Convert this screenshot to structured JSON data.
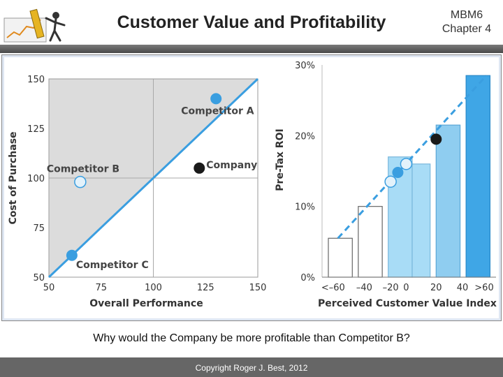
{
  "header": {
    "title": "Customer Value and Profitability",
    "course_code": "MBM6",
    "chapter": "Chapter 4"
  },
  "question": {
    "prefix": "Why would the Company be ",
    "emphasis": "more profitable",
    "suffix": " than Competitor B?"
  },
  "footer": {
    "copyright": "Copyright Roger J. Best, 2012"
  },
  "colors": {
    "accent_blue": "#3a9ee0",
    "light_blue": "#8fcdf0",
    "dark_marker": "#1a1a1a"
  },
  "chart_data": [
    {
      "type": "scatter",
      "title": "",
      "xlabel": "Overall Performance",
      "ylabel": "Cost of Purchase",
      "xlim": [
        50,
        150
      ],
      "ylim": [
        50,
        150
      ],
      "xticks": [
        "50",
        "75",
        "100",
        "125",
        "150"
      ],
      "yticks": [
        "50",
        "75",
        "100",
        "125",
        "150"
      ],
      "fair_value_line": [
        [
          50,
          50
        ],
        [
          150,
          150
        ]
      ],
      "points": [
        {
          "label": "Competitor A",
          "x": 130,
          "y": 140,
          "style": "blue"
        },
        {
          "label": "Company",
          "x": 122,
          "y": 105,
          "style": "dark"
        },
        {
          "label": "Competitor B",
          "x": 65,
          "y": 98,
          "style": "light"
        },
        {
          "label": "Competitor C",
          "x": 61,
          "y": 61,
          "style": "blue"
        }
      ]
    },
    {
      "type": "bar",
      "title": "",
      "xlabel": "Perceived Customer Value Index",
      "ylabel": "Pre-Tax ROI",
      "ylim": [
        0,
        30
      ],
      "yticks": [
        "0%",
        "10%",
        "20%",
        "30%"
      ],
      "categories": [
        "<–60",
        "–40",
        "–20",
        "0",
        "20",
        "40",
        ">60"
      ],
      "bars": [
        {
          "from": -70,
          "to": -50,
          "value": 5.5
        },
        {
          "from": -45,
          "to": -25,
          "value": 10
        },
        {
          "from": -20,
          "to": 0,
          "value": 17
        },
        {
          "from": 0,
          "to": 15,
          "value": 16
        },
        {
          "from": 20,
          "to": 40,
          "value": 21.5
        },
        {
          "from": 45,
          "to": 65,
          "value": 28.5
        }
      ],
      "trend_line": [
        [
          -62,
          5.5
        ],
        [
          62,
          28.5
        ]
      ],
      "points": [
        {
          "x": -18,
          "value": 13.5,
          "style": "light"
        },
        {
          "x": -12,
          "value": 14.8,
          "style": "blue"
        },
        {
          "x": -5,
          "value": 16,
          "style": "light"
        },
        {
          "x": 20,
          "value": 19.5,
          "style": "dark"
        }
      ]
    }
  ]
}
